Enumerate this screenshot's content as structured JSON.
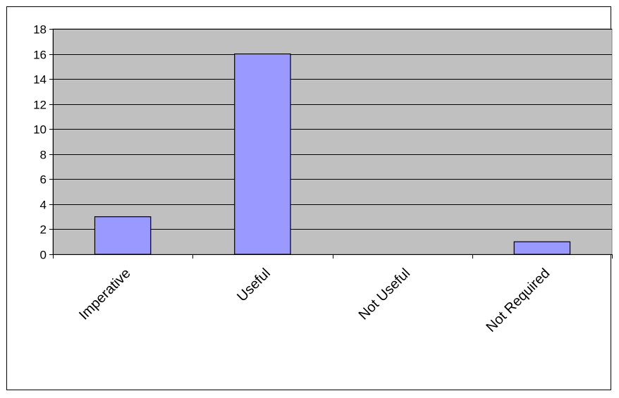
{
  "chart_data": {
    "type": "bar",
    "categories": [
      "Imperative",
      "Useful",
      "Not Useful",
      "Not Required"
    ],
    "values": [
      3,
      16,
      0,
      1
    ],
    "ylim": [
      0,
      18
    ],
    "yticks": [
      0,
      2,
      4,
      6,
      8,
      10,
      12,
      14,
      16,
      18
    ],
    "grid": true,
    "legend": "none",
    "colors": {
      "bar": "#9999ff",
      "plot_area": "#c0c0c0",
      "gridline": "#000000",
      "bar_outline": "#000000"
    }
  }
}
